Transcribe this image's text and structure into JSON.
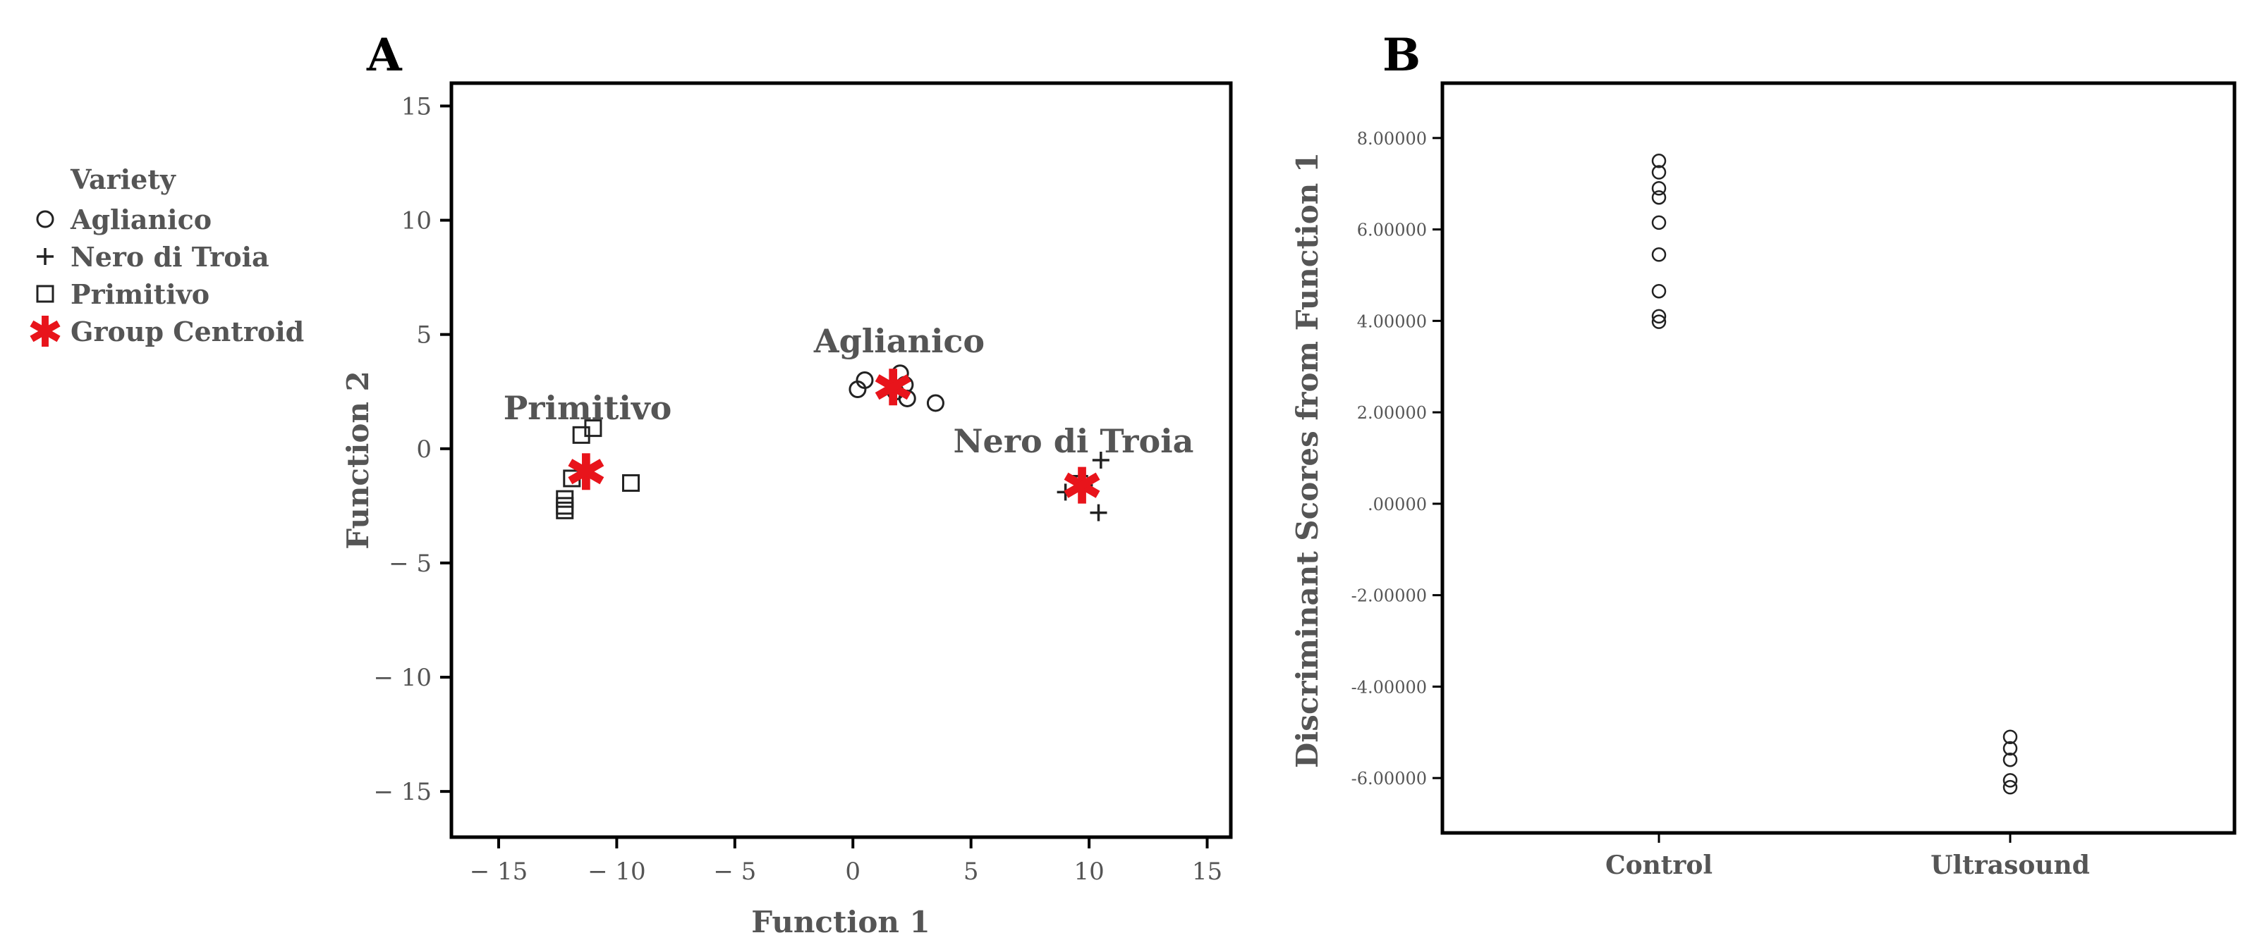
{
  "chart_data": [
    {
      "panel": "A",
      "type": "scatter",
      "xlabel": "Function 1",
      "ylabel": "Function 2",
      "xlim": [
        -17,
        16
      ],
      "ylim": [
        -17,
        16
      ],
      "xticks": [
        -15,
        -10,
        -5,
        0,
        5,
        10,
        15
      ],
      "yticks": [
        15,
        10,
        5,
        0,
        -5,
        -10,
        -15
      ],
      "xtick_labels": [
        "− 15",
        "− 10",
        "− 5",
        "0",
        "5",
        "10",
        "15"
      ],
      "ytick_labels": [
        "15",
        "10",
        "5",
        "0",
        "− 5",
        "− 10",
        "− 15"
      ],
      "legend": {
        "title": "Variety",
        "position": "left",
        "entries": [
          {
            "label": "Aglianico",
            "marker": "circle"
          },
          {
            "label": "Nero di Troia",
            "marker": "plus"
          },
          {
            "label": "Primitivo",
            "marker": "square"
          },
          {
            "label": "Group Centroid",
            "marker": "asterisk",
            "color": "#e8141b"
          }
        ]
      },
      "series": [
        {
          "name": "Aglianico",
          "marker": "circle",
          "label": "Aglianico",
          "x": [
            0.2,
            0.5,
            2.0,
            2.2,
            2.3,
            3.5,
            1.8
          ],
          "y": [
            2.6,
            3.0,
            3.3,
            2.8,
            2.2,
            2.0,
            2.5
          ]
        },
        {
          "name": "Nero di Troia",
          "marker": "plus",
          "label": "Nero di Troia",
          "x": [
            10.5,
            9.6,
            9.0,
            10.4,
            9.8
          ],
          "y": [
            -0.5,
            -1.2,
            -1.9,
            -2.8,
            -1.6
          ]
        },
        {
          "name": "Primitivo",
          "marker": "square",
          "label": "Primitivo",
          "x": [
            -11.0,
            -11.5,
            -11.9,
            -12.2,
            -12.2,
            -12.2,
            -9.4
          ],
          "y": [
            0.9,
            0.6,
            -1.3,
            -2.2,
            -2.5,
            -2.7,
            -1.5
          ]
        }
      ],
      "centroids": [
        {
          "name": "Aglianico",
          "x": 1.7,
          "y": 2.7
        },
        {
          "name": "Nero di Troia",
          "x": 9.7,
          "y": -1.6
        },
        {
          "name": "Primitivo",
          "x": -11.3,
          "y": -1.0
        }
      ],
      "centroid_color": "#e8141b"
    },
    {
      "panel": "B",
      "type": "scatter",
      "xlabel": "",
      "ylabel": "Discriminant Scores from Function 1",
      "categories": [
        "Control",
        "Ultrasound"
      ],
      "ylim": [
        -7.2,
        9.2
      ],
      "yticks": [
        8,
        6,
        4,
        2,
        0,
        -2,
        -4,
        -6
      ],
      "ytick_labels": [
        "8.00000",
        "6.00000",
        "4.00000",
        "2.00000",
        ".00000",
        "-2.00000",
        "-4.00000",
        "-6.00000"
      ],
      "series": [
        {
          "name": "Control",
          "marker": "circle",
          "values": [
            7.5,
            7.25,
            6.9,
            6.7,
            6.15,
            5.45,
            4.65,
            4.1,
            3.98
          ]
        },
        {
          "name": "Ultrasound",
          "marker": "circle",
          "values": [
            -5.1,
            -5.35,
            -5.6,
            -6.05,
            -6.2
          ]
        }
      ]
    }
  ]
}
